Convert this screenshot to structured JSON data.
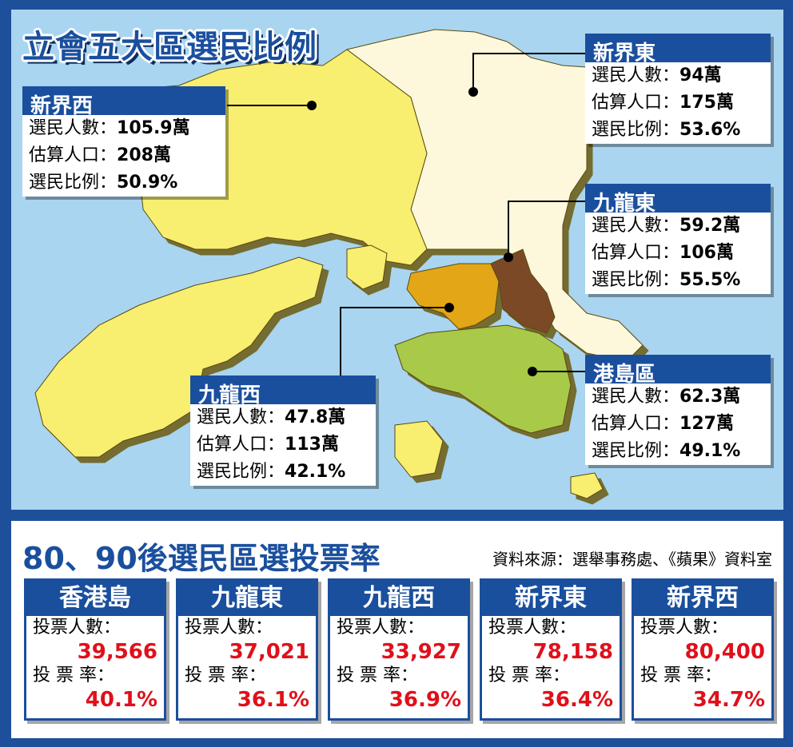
{
  "map": {
    "title": "立會五大區選民比例",
    "labels": {
      "voters": "選民人數：",
      "population": "估算人口：",
      "ratio": "選民比例："
    },
    "colors": {
      "sea": "#a9d5f0",
      "nt_west": "#f8ee6f",
      "nt_east": "#fdf8dc",
      "kowloon_west": "#e3a617",
      "kowloon_east": "#7b4a26",
      "hk_island": "#a9c94a",
      "islands": "#f8ee6f",
      "header_blue": "#1a4f9e"
    },
    "regions": [
      {
        "id": "nt-west",
        "name": "新界西",
        "voters": "105.9萬",
        "population": "208萬",
        "ratio": "50.9%"
      },
      {
        "id": "nt-east",
        "name": "新界東",
        "voters": "94萬",
        "population": "175萬",
        "ratio": "53.6%"
      },
      {
        "id": "kowloon-east",
        "name": "九龍東",
        "voters": "59.2萬",
        "population": "106萬",
        "ratio": "55.5%"
      },
      {
        "id": "kowloon-west",
        "name": "九龍西",
        "voters": "47.8萬",
        "population": "113萬",
        "ratio": "42.1%"
      },
      {
        "id": "hk-island",
        "name": "港島區",
        "voters": "62.3萬",
        "population": "127萬",
        "ratio": "49.1%"
      }
    ]
  },
  "turnout": {
    "title": "80、90後選民區選投票率",
    "source": "資料來源：選舉事務處、《蘋果》資料室",
    "count_label": "投票人數：",
    "rate_label": "投 票 率：",
    "districts": [
      {
        "name": "香港島",
        "count": "39,566",
        "rate": "40.1%"
      },
      {
        "name": "九龍東",
        "count": "37,021",
        "rate": "36.1%"
      },
      {
        "name": "九龍西",
        "count": "33,927",
        "rate": "36.9%"
      },
      {
        "name": "新界東",
        "count": "78,158",
        "rate": "36.4%"
      },
      {
        "name": "新界西",
        "count": "80,400",
        "rate": "34.7%"
      }
    ]
  }
}
